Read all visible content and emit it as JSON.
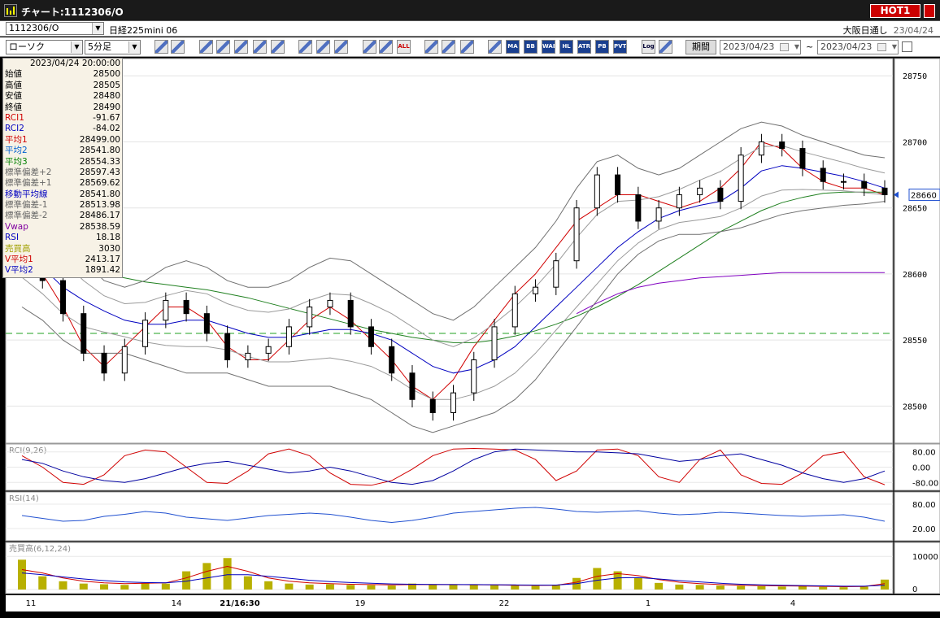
{
  "window": {
    "title": "チャート:1112306/O",
    "hot_button": "HOT1"
  },
  "symbol_bar": {
    "symbol": "1112306/O",
    "product": "日経225mini 06",
    "session": "大阪日通し",
    "session_date": "23/04/24"
  },
  "toolbar": {
    "chart_type": "ローソク",
    "interval": "5分足",
    "buttons": [
      {
        "icon": "zoom-icon",
        "label": ""
      },
      {
        "icon": "grid-icon",
        "label": ""
      },
      {
        "icon": "download-icon",
        "label": ""
      },
      {
        "icon": "search-icon",
        "label": ""
      },
      {
        "icon": "bar-chart-icon",
        "label": ""
      },
      {
        "icon": "cross-arrows-icon",
        "label": ""
      },
      {
        "icon": "disabled-icon",
        "label": ""
      },
      {
        "icon": "pen-icon",
        "label": ""
      },
      {
        "icon": "cursor-icon",
        "label": ""
      },
      {
        "icon": "undo-icon",
        "label": ""
      },
      {
        "icon": "page-icon",
        "label": ""
      },
      {
        "icon": "page2-icon",
        "label": ""
      },
      {
        "icon": "all-icon",
        "label": "ALL"
      },
      {
        "icon": "settings-icon",
        "label": ""
      },
      {
        "icon": "wrench-icon",
        "label": ""
      },
      {
        "icon": "palette-icon",
        "label": ""
      },
      {
        "icon": "price-icon",
        "label": ""
      },
      {
        "icon": "ma-icon",
        "label": "MA"
      },
      {
        "icon": "bb-icon",
        "label": "BB"
      },
      {
        "icon": "wae-icon",
        "label": "WAE"
      },
      {
        "icon": "hl-icon",
        "label": "HL"
      },
      {
        "icon": "atr-icon",
        "label": "ATR"
      },
      {
        "icon": "pb-icon",
        "label": "PB"
      },
      {
        "icon": "pvt-icon",
        "label": "PVT"
      },
      {
        "icon": "log-icon",
        "label": "Log"
      },
      {
        "icon": "screen-icon",
        "label": ""
      }
    ],
    "period_label": "期間",
    "date_from": "2023/04/23",
    "date_to": "2023/04/23",
    "tilde": "~"
  },
  "info_panel": {
    "datetime": "2023/04/24 20:00:00",
    "rows": [
      {
        "label": "始値",
        "value": "28500",
        "color": "#000000"
      },
      {
        "label": "高値",
        "value": "28505",
        "color": "#000000"
      },
      {
        "label": "安値",
        "value": "28480",
        "color": "#000000"
      },
      {
        "label": "終値",
        "value": "28490",
        "color": "#000000"
      },
      {
        "label": "RCI1",
        "value": "-91.67",
        "color": "#d00000"
      },
      {
        "label": "RCI2",
        "value": "-84.02",
        "color": "#0000c0"
      },
      {
        "label": "平均1",
        "value": "28499.00",
        "color": "#d00000"
      },
      {
        "label": "平均2",
        "value": "28541.80",
        "color": "#0060d0"
      },
      {
        "label": "平均3",
        "value": "28554.33",
        "color": "#008000"
      },
      {
        "label": "標準偏差+2",
        "value": "28597.43",
        "color": "#666666"
      },
      {
        "label": "標準偏差+1",
        "value": "28569.62",
        "color": "#666666"
      },
      {
        "label": "移動平均線",
        "value": "28541.80",
        "color": "#0000c0"
      },
      {
        "label": "標準偏差-1",
        "value": "28513.98",
        "color": "#666666"
      },
      {
        "label": "標準偏差-2",
        "value": "28486.17",
        "color": "#666666"
      },
      {
        "label": "Vwap",
        "value": "28538.59",
        "color": "#8000a0"
      },
      {
        "label": "RSI",
        "value": "18.18",
        "color": "#0000c0"
      },
      {
        "label": "売買高",
        "value": "3030",
        "color": "#a0a000"
      },
      {
        "label": "V平均1",
        "value": "2413.17",
        "color": "#d00000"
      },
      {
        "label": "V平均2",
        "value": "1891.42",
        "color": "#0000c0"
      }
    ]
  },
  "chart_data": [
    {
      "type": "candlestick",
      "title": "",
      "y_ticks": [
        "28750",
        "28700",
        "28650",
        "28600",
        "28550",
        "28500"
      ],
      "ylim": [
        28475,
        28760
      ],
      "current_price": "28660",
      "x_ticks": [
        "11",
        "14",
        "21/16:30",
        "19",
        "22",
        "1",
        "4"
      ],
      "series": [
        {
          "name": "平均1",
          "color": "#d00000",
          "values": [
            28625,
            28600,
            28575,
            28545,
            28530,
            28545,
            28560,
            28575,
            28575,
            28565,
            28545,
            28535,
            28535,
            28550,
            28565,
            28575,
            28565,
            28550,
            28535,
            28515,
            28505,
            28520,
            28545,
            28565,
            28585,
            28600,
            28620,
            28640,
            28650,
            28660,
            28660,
            28655,
            28650,
            28655,
            28665,
            28680,
            28700,
            28695,
            28680,
            28670,
            28665,
            28665,
            28660
          ]
        },
        {
          "name": "平均2",
          "color": "#0000c0",
          "values": [
            28620,
            28605,
            28590,
            28580,
            28572,
            28565,
            28562,
            28562,
            28565,
            28565,
            28560,
            28555,
            28552,
            28552,
            28555,
            28558,
            28558,
            28555,
            28550,
            28540,
            28530,
            28525,
            28528,
            28535,
            28545,
            28560,
            28575,
            28590,
            28605,
            28620,
            28632,
            28642,
            28648,
            28652,
            28655,
            28665,
            28678,
            28682,
            28680,
            28677,
            28674,
            28670,
            28665
          ]
        },
        {
          "name": "平均3",
          "color": "#208020",
          "values": [
            28615,
            28612,
            28608,
            28604,
            28600,
            28597,
            28594,
            28592,
            28590,
            28588,
            28585,
            28582,
            28578,
            28574,
            28570,
            28566,
            28562,
            28558,
            28555,
            28552,
            28550,
            28548,
            28548,
            28550,
            28553,
            28557,
            28562,
            28568,
            28575,
            28583,
            28592,
            28602,
            28612,
            28622,
            28632,
            28640,
            28648,
            28654,
            28658,
            28661,
            28662,
            28662,
            28662
          ]
        },
        {
          "name": "Vwap",
          "color": "#8000c0",
          "values": [
            null,
            null,
            null,
            null,
            null,
            null,
            null,
            null,
            null,
            null,
            null,
            null,
            null,
            null,
            null,
            null,
            null,
            null,
            null,
            null,
            null,
            null,
            null,
            null,
            null,
            null,
            null,
            28570,
            28578,
            28585,
            28590,
            28593,
            28595,
            28597,
            28598,
            28599,
            28600,
            28601,
            28601,
            28601,
            28601,
            28601,
            28601
          ]
        },
        {
          "name": "標準偏差+2",
          "color": "#707070",
          "values": [
            28660,
            28645,
            28630,
            28610,
            28595,
            28590,
            28595,
            28605,
            28610,
            28605,
            28595,
            28590,
            28590,
            28595,
            28605,
            28612,
            28610,
            28600,
            28590,
            28580,
            28570,
            28565,
            28575,
            28590,
            28605,
            28620,
            28640,
            28665,
            28685,
            28690,
            28680,
            28675,
            28680,
            28690,
            28700,
            28710,
            28715,
            28712,
            28705,
            28700,
            28695,
            28690,
            28688
          ]
        },
        {
          "name": "標準偏差-2",
          "color": "#707070",
          "values": [
            28575,
            28565,
            28550,
            28540,
            28540,
            28540,
            28535,
            28530,
            28525,
            28525,
            28525,
            28520,
            28515,
            28515,
            28515,
            28515,
            28510,
            28505,
            28495,
            28485,
            28480,
            28485,
            28490,
            28495,
            28505,
            28520,
            28540,
            28560,
            28580,
            28600,
            28615,
            28625,
            28630,
            28630,
            28632,
            28635,
            28640,
            28645,
            28648,
            28650,
            28652,
            28653,
            28655
          ]
        }
      ],
      "candles_close": [
        28615,
        28595,
        28570,
        28540,
        28525,
        28545,
        28565,
        28580,
        28570,
        28555,
        28535,
        28540,
        28545,
        28560,
        28575,
        28580,
        28560,
        28545,
        28525,
        28505,
        28495,
        28510,
        28535,
        28560,
        28585,
        28590,
        28610,
        28650,
        28675,
        28660,
        28640,
        28650,
        28660,
        28665,
        28655,
        28690,
        28700,
        28695,
        28680,
        28670,
        28670,
        28665,
        28660
      ]
    },
    {
      "type": "line",
      "title": "RCI(9,26)",
      "y_ticks": [
        "80.00",
        "0.00",
        "-80.00"
      ],
      "ylim": [
        -100,
        100
      ],
      "series": [
        {
          "name": "RCI1",
          "color": "#d00000",
          "values": [
            60,
            0,
            -80,
            -90,
            -40,
            60,
            90,
            80,
            0,
            -80,
            -85,
            -20,
            70,
            95,
            60,
            -30,
            -90,
            -95,
            -70,
            -10,
            60,
            95,
            98,
            95,
            90,
            40,
            -70,
            -20,
            90,
            95,
            60,
            -50,
            -80,
            40,
            90,
            -40,
            -85,
            -90,
            -30,
            60,
            80,
            -50,
            -92
          ]
        },
        {
          "name": "RCI2",
          "color": "#0000a0",
          "values": [
            40,
            20,
            -20,
            -50,
            -70,
            -80,
            -60,
            -30,
            0,
            20,
            30,
            10,
            -10,
            -30,
            -20,
            0,
            -20,
            -50,
            -80,
            -90,
            -70,
            -20,
            40,
            80,
            95,
            90,
            85,
            80,
            80,
            75,
            70,
            50,
            30,
            40,
            60,
            70,
            40,
            10,
            -30,
            -60,
            -80,
            -60,
            -20
          ]
        }
      ]
    },
    {
      "type": "line",
      "title": "RSI(14)",
      "y_ticks": [
        "80.00",
        "20.00"
      ],
      "ylim": [
        0,
        100
      ],
      "series": [
        {
          "name": "RSI",
          "color": "#2050d0",
          "values": [
            52,
            45,
            38,
            40,
            50,
            55,
            62,
            58,
            48,
            44,
            40,
            46,
            52,
            55,
            58,
            55,
            48,
            40,
            35,
            40,
            48,
            58,
            62,
            66,
            70,
            72,
            68,
            62,
            60,
            62,
            64,
            58,
            54,
            56,
            60,
            58,
            55,
            52,
            50,
            52,
            54,
            48,
            38
          ]
        }
      ]
    },
    {
      "type": "bar",
      "title": "売買高(6,12,24)",
      "y_ticks": [
        "10000",
        "0"
      ],
      "ylim": [
        0,
        13000
      ],
      "values": [
        9000,
        4000,
        2500,
        1800,
        1600,
        1400,
        2000,
        1800,
        5500,
        8000,
        9500,
        4000,
        2500,
        1800,
        1500,
        1600,
        1400,
        1300,
        1200,
        1800,
        1500,
        1600,
        1400,
        1300,
        1200,
        1100,
        1400,
        3500,
        6500,
        5500,
        3500,
        2000,
        1500,
        1400,
        1200,
        1100,
        1000,
        900,
        1000,
        800,
        700,
        900,
        3000
      ],
      "series": [
        {
          "name": "V平均1",
          "color": "#d00000",
          "values": [
            6000,
            5000,
            3500,
            2500,
            2000,
            1800,
            1900,
            2000,
            3500,
            5500,
            7000,
            5500,
            3500,
            2500,
            2000,
            1800,
            1600,
            1500,
            1400,
            1500,
            1500,
            1500,
            1450,
            1400,
            1300,
            1250,
            1300,
            2200,
            4000,
            4800,
            4200,
            3000,
            2200,
            1800,
            1500,
            1300,
            1200,
            1100,
            1050,
            950,
            850,
            900,
            1800
          ]
        },
        {
          "name": "V平均2",
          "color": "#0000c0",
          "values": [
            5000,
            4500,
            3800,
            3200,
            2700,
            2300,
            2100,
            2000,
            2500,
            3500,
            4500,
            4500,
            4000,
            3400,
            2800,
            2400,
            2100,
            1900,
            1700,
            1600,
            1550,
            1500,
            1500,
            1450,
            1400,
            1350,
            1350,
            1800,
            2800,
            3500,
            3600,
            3200,
            2700,
            2300,
            1900,
            1600,
            1400,
            1300,
            1200,
            1100,
            1000,
            1000,
            1300
          ]
        }
      ]
    }
  ],
  "colors": {
    "background": "#ffffff",
    "grid": "#d8d8d8",
    "dashed_line": "#20a020",
    "price_tag": "#2050d0"
  }
}
